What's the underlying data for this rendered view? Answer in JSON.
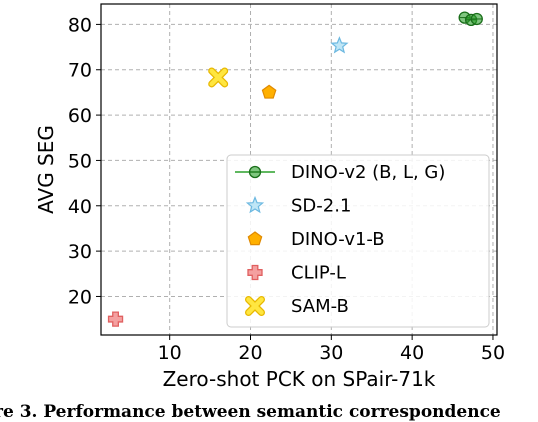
{
  "chart_data": {
    "type": "scatter",
    "title": "",
    "xlabel": "Zero-shot PCK on SPair-71k",
    "ylabel": "AVG SEG",
    "xlim": [
      1.5,
      50.5
    ],
    "ylim": [
      11.5,
      84.5
    ],
    "xticks": [
      10,
      20,
      30,
      40,
      50
    ],
    "yticks": [
      20,
      30,
      40,
      50,
      60,
      70,
      80
    ],
    "grid": true,
    "legend_position": "lower-right",
    "series": [
      {
        "name": "DINO-v2 (B, L, G)",
        "marker": "circle-line",
        "color": "#2ca02c",
        "points": [
          {
            "x": 46.5,
            "y": 81.5
          },
          {
            "x": 47.3,
            "y": 81.0
          },
          {
            "x": 48.0,
            "y": 81.2
          }
        ]
      },
      {
        "name": "SD-2.1",
        "marker": "star",
        "color": "#87ceeb",
        "points": [
          {
            "x": 31.0,
            "y": 75.3
          }
        ]
      },
      {
        "name": "DINO-v1-B",
        "marker": "pentagon",
        "color": "#ffa500",
        "points": [
          {
            "x": 22.3,
            "y": 65.0
          }
        ]
      },
      {
        "name": "CLIP-L",
        "marker": "plus",
        "color": "#f08080",
        "points": [
          {
            "x": 3.3,
            "y": 15.0
          }
        ]
      },
      {
        "name": "SAM-B",
        "marker": "x",
        "color": "#ffd700",
        "points": [
          {
            "x": 16.0,
            "y": 68.3
          }
        ]
      }
    ]
  },
  "caption": {
    "bold": "re 3. Performance between semantic correspondence"
  }
}
